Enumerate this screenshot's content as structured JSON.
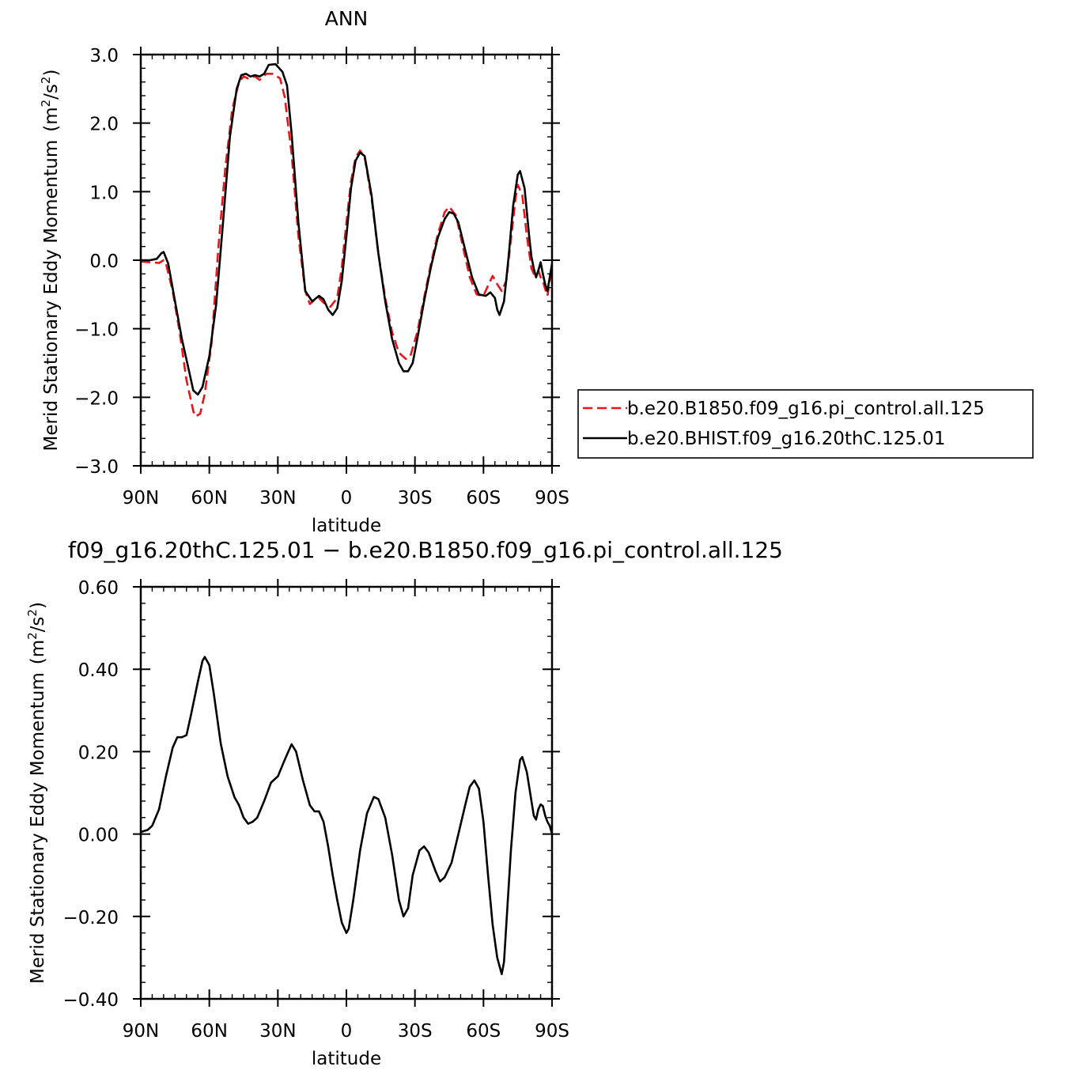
{
  "chart_data": [
    {
      "type": "line",
      "title": "ANN",
      "xlabel": "latitude",
      "ylabel": "Merid Stationary Eddy Momentum",
      "yunit_base": "(m",
      "yunit_exp1": "2",
      "yunit_mid": "/s",
      "yunit_exp2": "2",
      "yunit_end": ")",
      "xlim": [
        -90,
        90
      ],
      "ylim": [
        -3.0,
        3.0
      ],
      "xticks": [
        {
          "value": -90,
          "label": "90N"
        },
        {
          "value": -60,
          "label": "60N"
        },
        {
          "value": -30,
          "label": "30N"
        },
        {
          "value": 0,
          "label": "0"
        },
        {
          "value": 30,
          "label": "30S"
        },
        {
          "value": 60,
          "label": "60S"
        },
        {
          "value": 90,
          "label": "90S"
        }
      ],
      "yticks": [
        {
          "value": -3.0,
          "label": "−3.0"
        },
        {
          "value": -2.0,
          "label": "−2.0"
        },
        {
          "value": -1.0,
          "label": "−1.0"
        },
        {
          "value": 0.0,
          "label": "0.0"
        },
        {
          "value": 1.0,
          "label": "1.0"
        },
        {
          "value": 2.0,
          "label": "2.0"
        },
        {
          "value": 3.0,
          "label": "3.0"
        }
      ],
      "legend_position": "right",
      "series": [
        {
          "name": "b.e20.B1850.f09_g16.pi_control.all.125",
          "color": "#e8161b",
          "dash": "dashed",
          "points": [
            [
              -90,
              -0.02
            ],
            [
              -86,
              -0.03
            ],
            [
              -82,
              -0.04
            ],
            [
              -80,
              0.0
            ],
            [
              -79,
              -0.05
            ],
            [
              -76,
              -0.45
            ],
            [
              -73,
              -1.05
            ],
            [
              -70,
              -1.75
            ],
            [
              -67,
              -2.2
            ],
            [
              -66,
              -2.28
            ],
            [
              -64,
              -2.24
            ],
            [
              -62,
              -1.95
            ],
            [
              -59,
              -1.2
            ],
            [
              -56,
              0.2
            ],
            [
              -53,
              1.35
            ],
            [
              -50,
              2.2
            ],
            [
              -47,
              2.6
            ],
            [
              -45,
              2.68
            ],
            [
              -43,
              2.65
            ],
            [
              -40,
              2.68
            ],
            [
              -38,
              2.63
            ],
            [
              -35,
              2.72
            ],
            [
              -32,
              2.72
            ],
            [
              -29,
              2.65
            ],
            [
              -27,
              2.38
            ],
            [
              -24,
              1.55
            ],
            [
              -21,
              0.35
            ],
            [
              -18,
              -0.45
            ],
            [
              -16,
              -0.64
            ],
            [
              -14,
              -0.58
            ],
            [
              -12,
              -0.55
            ],
            [
              -10,
              -0.62
            ],
            [
              -7,
              -0.68
            ],
            [
              -4,
              -0.55
            ],
            [
              -2,
              -0.1
            ],
            [
              0,
              0.55
            ],
            [
              2,
              1.15
            ],
            [
              4,
              1.5
            ],
            [
              6,
              1.6
            ],
            [
              8,
              1.5
            ],
            [
              11,
              0.9
            ],
            [
              14,
              0.1
            ],
            [
              17,
              -0.55
            ],
            [
              20,
              -1.05
            ],
            [
              23,
              -1.35
            ],
            [
              26,
              -1.44
            ],
            [
              28,
              -1.4
            ],
            [
              31,
              -1.05
            ],
            [
              34,
              -0.55
            ],
            [
              37,
              -0.05
            ],
            [
              40,
              0.38
            ],
            [
              43,
              0.7
            ],
            [
              45,
              0.78
            ],
            [
              48,
              0.65
            ],
            [
              51,
              0.2
            ],
            [
              54,
              -0.25
            ],
            [
              57,
              -0.5
            ],
            [
              60,
              -0.52
            ],
            [
              62,
              -0.37
            ],
            [
              64,
              -0.23
            ],
            [
              66,
              -0.35
            ],
            [
              68,
              -0.45
            ],
            [
              70,
              -0.3
            ],
            [
              72,
              0.3
            ],
            [
              74,
              0.9
            ],
            [
              75,
              1.1
            ],
            [
              77,
              0.95
            ],
            [
              79,
              0.35
            ],
            [
              81,
              -0.12
            ],
            [
              82,
              -0.2
            ],
            [
              83,
              -0.2
            ],
            [
              84,
              -0.15
            ],
            [
              85,
              -0.25
            ],
            [
              86,
              -0.3
            ],
            [
              87,
              -0.42
            ],
            [
              88,
              -0.52
            ],
            [
              89,
              -0.3
            ],
            [
              90,
              -0.1
            ]
          ]
        },
        {
          "name": "b.e20.BHIST.f09_g16.20thC.125.01",
          "color": "#000000",
          "dash": "solid",
          "points": [
            [
              -90,
              0.0
            ],
            [
              -86,
              0.0
            ],
            [
              -83,
              0.02
            ],
            [
              -81,
              0.1
            ],
            [
              -80,
              0.12
            ],
            [
              -78,
              -0.05
            ],
            [
              -75,
              -0.6
            ],
            [
              -72,
              -1.15
            ],
            [
              -69,
              -1.6
            ],
            [
              -67,
              -1.9
            ],
            [
              -65,
              -1.96
            ],
            [
              -63,
              -1.85
            ],
            [
              -60,
              -1.4
            ],
            [
              -57,
              -0.65
            ],
            [
              -54,
              0.55
            ],
            [
              -51,
              1.8
            ],
            [
              -48,
              2.5
            ],
            [
              -46,
              2.7
            ],
            [
              -44,
              2.72
            ],
            [
              -42,
              2.68
            ],
            [
              -40,
              2.7
            ],
            [
              -38,
              2.68
            ],
            [
              -36,
              2.72
            ],
            [
              -34,
              2.85
            ],
            [
              -31,
              2.86
            ],
            [
              -28,
              2.75
            ],
            [
              -26,
              2.55
            ],
            [
              -24,
              1.85
            ],
            [
              -21,
              0.55
            ],
            [
              -18,
              -0.45
            ],
            [
              -15,
              -0.6
            ],
            [
              -12,
              -0.52
            ],
            [
              -10,
              -0.57
            ],
            [
              -8,
              -0.72
            ],
            [
              -6,
              -0.8
            ],
            [
              -4,
              -0.7
            ],
            [
              -2,
              -0.3
            ],
            [
              0,
              0.35
            ],
            [
              2,
              1.05
            ],
            [
              4,
              1.45
            ],
            [
              6,
              1.57
            ],
            [
              8,
              1.52
            ],
            [
              11,
              0.95
            ],
            [
              14,
              0.1
            ],
            [
              17,
              -0.6
            ],
            [
              20,
              -1.15
            ],
            [
              23,
              -1.5
            ],
            [
              25,
              -1.62
            ],
            [
              27,
              -1.62
            ],
            [
              29,
              -1.5
            ],
            [
              31,
              -1.15
            ],
            [
              34,
              -0.6
            ],
            [
              37,
              -0.1
            ],
            [
              40,
              0.33
            ],
            [
              43,
              0.6
            ],
            [
              45,
              0.7
            ],
            [
              47,
              0.68
            ],
            [
              49,
              0.55
            ],
            [
              52,
              0.15
            ],
            [
              55,
              -0.25
            ],
            [
              58,
              -0.5
            ],
            [
              61,
              -0.52
            ],
            [
              63,
              -0.47
            ],
            [
              65,
              -0.55
            ],
            [
              66,
              -0.72
            ],
            [
              67,
              -0.8
            ],
            [
              69,
              -0.6
            ],
            [
              71,
              0.05
            ],
            [
              73,
              0.8
            ],
            [
              75,
              1.25
            ],
            [
              76,
              1.3
            ],
            [
              78,
              1.05
            ],
            [
              80,
              0.35
            ],
            [
              81,
              0.05
            ],
            [
              82,
              -0.12
            ],
            [
              83,
              -0.25
            ],
            [
              84,
              -0.15
            ],
            [
              85,
              -0.03
            ],
            [
              86,
              -0.2
            ],
            [
              87,
              -0.35
            ],
            [
              88,
              -0.45
            ],
            [
              89,
              -0.25
            ],
            [
              90,
              -0.05
            ]
          ]
        }
      ]
    },
    {
      "type": "line",
      "title": "f09_g16.20thC.125.01 − b.e20.B1850.f09_g16.pi_control.all.125",
      "xlabel": "latitude",
      "ylabel": "Merid Stationary Eddy Momentum",
      "yunit_base": "(m",
      "yunit_exp1": "2",
      "yunit_mid": "/s",
      "yunit_exp2": "2",
      "yunit_end": ")",
      "xlim": [
        -90,
        90
      ],
      "ylim": [
        -0.4,
        0.6
      ],
      "xticks": [
        {
          "value": -90,
          "label": "90N"
        },
        {
          "value": -60,
          "label": "60N"
        },
        {
          "value": -30,
          "label": "30N"
        },
        {
          "value": 0,
          "label": "0"
        },
        {
          "value": 30,
          "label": "30S"
        },
        {
          "value": 60,
          "label": "60S"
        },
        {
          "value": 90,
          "label": "90S"
        }
      ],
      "yticks": [
        {
          "value": -0.4,
          "label": "−0.40"
        },
        {
          "value": -0.2,
          "label": "−0.20"
        },
        {
          "value": 0.0,
          "label": "0.00"
        },
        {
          "value": 0.2,
          "label": "0.20"
        },
        {
          "value": 0.4,
          "label": "0.40"
        },
        {
          "value": 0.6,
          "label": "0.60"
        }
      ],
      "series": [
        {
          "color": "#000000",
          "dash": "solid",
          "points": [
            [
              -90,
              0.005
            ],
            [
              -87,
              0.01
            ],
            [
              -85,
              0.02
            ],
            [
              -82,
              0.06
            ],
            [
              -79,
              0.14
            ],
            [
              -76,
              0.21
            ],
            [
              -74,
              0.235
            ],
            [
              -72,
              0.235
            ],
            [
              -70,
              0.24
            ],
            [
              -68,
              0.29
            ],
            [
              -65,
              0.37
            ],
            [
              -63,
              0.42
            ],
            [
              -62,
              0.43
            ],
            [
              -60,
              0.41
            ],
            [
              -58,
              0.34
            ],
            [
              -55,
              0.22
            ],
            [
              -52,
              0.14
            ],
            [
              -49,
              0.09
            ],
            [
              -47,
              0.07
            ],
            [
              -45,
              0.04
            ],
            [
              -43,
              0.025
            ],
            [
              -41,
              0.03
            ],
            [
              -39,
              0.04
            ],
            [
              -36,
              0.08
            ],
            [
              -33,
              0.125
            ],
            [
              -30,
              0.14
            ],
            [
              -27,
              0.18
            ],
            [
              -24,
              0.218
            ],
            [
              -22,
              0.2
            ],
            [
              -19,
              0.13
            ],
            [
              -16,
              0.07
            ],
            [
              -14,
              0.055
            ],
            [
              -12,
              0.055
            ],
            [
              -10,
              0.03
            ],
            [
              -8,
              -0.03
            ],
            [
              -6,
              -0.1
            ],
            [
              -4,
              -0.16
            ],
            [
              -2,
              -0.215
            ],
            [
              0,
              -0.24
            ],
            [
              1,
              -0.23
            ],
            [
              3,
              -0.16
            ],
            [
              6,
              -0.04
            ],
            [
              9,
              0.05
            ],
            [
              12,
              0.09
            ],
            [
              14,
              0.085
            ],
            [
              17,
              0.04
            ],
            [
              20,
              -0.05
            ],
            [
              23,
              -0.16
            ],
            [
              25,
              -0.2
            ],
            [
              27,
              -0.18
            ],
            [
              29,
              -0.1
            ],
            [
              32,
              -0.04
            ],
            [
              34,
              -0.03
            ],
            [
              36,
              -0.045
            ],
            [
              39,
              -0.09
            ],
            [
              41,
              -0.115
            ],
            [
              43,
              -0.105
            ],
            [
              46,
              -0.07
            ],
            [
              49,
              0.0
            ],
            [
              52,
              0.07
            ],
            [
              54,
              0.115
            ],
            [
              56,
              0.13
            ],
            [
              58,
              0.11
            ],
            [
              60,
              0.03
            ],
            [
              62,
              -0.1
            ],
            [
              64,
              -0.22
            ],
            [
              66,
              -0.3
            ],
            [
              68,
              -0.34
            ],
            [
              69,
              -0.31
            ],
            [
              70,
              -0.22
            ],
            [
              72,
              -0.04
            ],
            [
              74,
              0.1
            ],
            [
              76,
              0.18
            ],
            [
              77,
              0.187
            ],
            [
              79,
              0.15
            ],
            [
              81,
              0.08
            ],
            [
              82,
              0.045
            ],
            [
              83,
              0.035
            ],
            [
              84,
              0.06
            ],
            [
              85,
              0.072
            ],
            [
              86,
              0.068
            ],
            [
              87,
              0.045
            ],
            [
              88,
              0.03
            ],
            [
              89,
              0.02
            ],
            [
              90,
              0.0
            ]
          ]
        }
      ]
    }
  ]
}
